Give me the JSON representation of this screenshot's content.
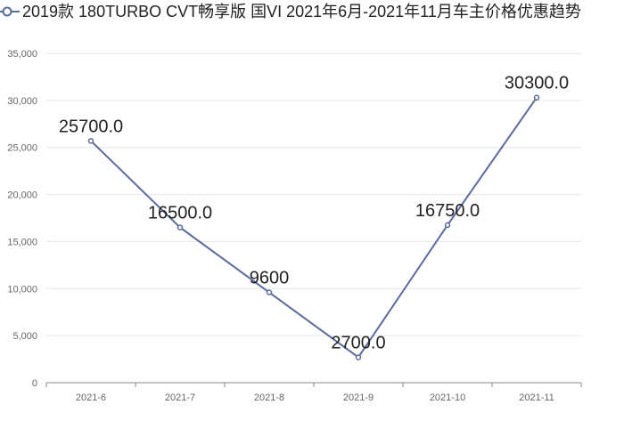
{
  "chart_data": {
    "type": "line",
    "legend": "top-left",
    "series": [
      {
        "name": "2019款 180TURBO CVT畅享版 国VI 2021年6月-2021年11月车主价格优惠趋势",
        "values": [
          25700,
          16500,
          9600,
          2700,
          16750,
          30300
        ],
        "labels": [
          "25700.0",
          "16500.0",
          "9600",
          "2700.0",
          "16750.0",
          "30300.0"
        ],
        "color": "#5b6b9e"
      }
    ],
    "categories": [
      "2021-6",
      "2021-7",
      "2021-8",
      "2021-9",
      "2021-10",
      "2021-11"
    ],
    "ylim": [
      0,
      35000
    ],
    "yticks": [
      0,
      5000,
      10000,
      15000,
      20000,
      25000,
      30000,
      35000
    ],
    "ytick_labels": [
      "0",
      "5,000",
      "10,000",
      "15,000",
      "20,000",
      "25,000",
      "30,000",
      "35,000"
    ],
    "grid": true
  }
}
